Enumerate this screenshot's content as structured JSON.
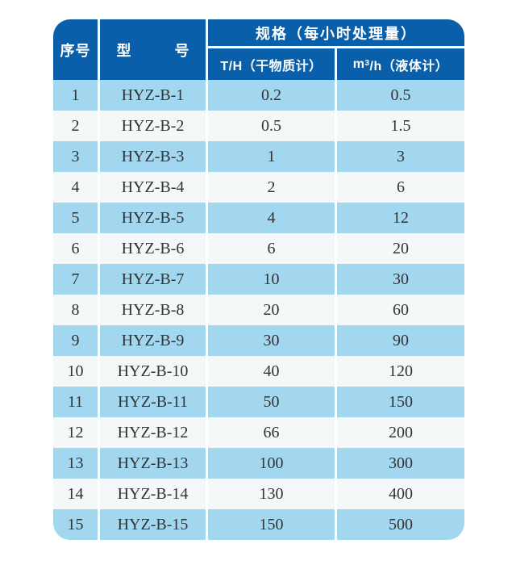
{
  "colors": {
    "header_blue": "#0a5faa",
    "stripe_blue": "#a3d7f0",
    "stripe_white": "#f4f8f8",
    "header_text": "#ffffff",
    "body_text": "#333333"
  },
  "header": {
    "col_no": "序号",
    "col_model": "型　　　号",
    "col_spec": "规格（每小时处理量）",
    "col_th": "T/H（干物质计）",
    "col_m3h": {
      "pre": "m",
      "sup": "3",
      "post": "/h（液体计）"
    }
  },
  "rows": [
    {
      "no": "1",
      "model": "HYZ-B-1",
      "th": "0.2",
      "m3h": "0.5"
    },
    {
      "no": "2",
      "model": "HYZ-B-2",
      "th": "0.5",
      "m3h": "1.5"
    },
    {
      "no": "3",
      "model": "HYZ-B-3",
      "th": "1",
      "m3h": "3"
    },
    {
      "no": "4",
      "model": "HYZ-B-4",
      "th": "2",
      "m3h": "6"
    },
    {
      "no": "5",
      "model": "HYZ-B-5",
      "th": "4",
      "m3h": "12"
    },
    {
      "no": "6",
      "model": "HYZ-B-6",
      "th": "6",
      "m3h": "20"
    },
    {
      "no": "7",
      "model": "HYZ-B-7",
      "th": "10",
      "m3h": "30"
    },
    {
      "no": "8",
      "model": "HYZ-B-8",
      "th": "20",
      "m3h": "60"
    },
    {
      "no": "9",
      "model": "HYZ-B-9",
      "th": "30",
      "m3h": "90"
    },
    {
      "no": "10",
      "model": "HYZ-B-10",
      "th": "40",
      "m3h": "120"
    },
    {
      "no": "11",
      "model": "HYZ-B-11",
      "th": "50",
      "m3h": "150"
    },
    {
      "no": "12",
      "model": "HYZ-B-12",
      "th": "66",
      "m3h": "200"
    },
    {
      "no": "13",
      "model": "HYZ-B-13",
      "th": "100",
      "m3h": "300"
    },
    {
      "no": "14",
      "model": "HYZ-B-14",
      "th": "130",
      "m3h": "400"
    },
    {
      "no": "15",
      "model": "HYZ-B-15",
      "th": "150",
      "m3h": "500"
    }
  ]
}
